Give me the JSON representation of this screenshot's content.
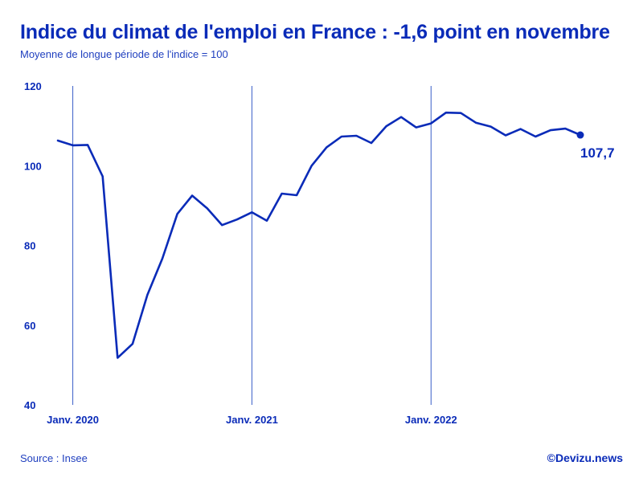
{
  "title": "Indice du climat de l'emploi en France : -1,6 point en novembre",
  "subtitle": "Moyenne de longue période de l'indice = 100",
  "footer": {
    "source": "Source : Insee",
    "credit": "©Devizu.news"
  },
  "colors": {
    "line": "#0a2bb8",
    "text": "#0a2bb8",
    "reference_lines": "#3a5fc8"
  },
  "chart_data": {
    "type": "line",
    "ylim": [
      40,
      120
    ],
    "yticks": [
      "40",
      "60",
      "80",
      "100",
      "120"
    ],
    "ytick_values": [
      40,
      60,
      80,
      100,
      120
    ],
    "x_start": "2019-12",
    "x_end": "2022-11",
    "xticks": [
      {
        "label": "Janv. 2020",
        "x": "2020-01"
      },
      {
        "label": "Janv. 2021",
        "x": "2021-01"
      },
      {
        "label": "Janv. 2022",
        "x": "2022-01"
      }
    ],
    "vertical_reference_lines_at": [
      "2020-01",
      "2021-01",
      "2022-01"
    ],
    "series": [
      {
        "name": "",
        "x": [
          "2019-12",
          "2020-01",
          "2020-02",
          "2020-03",
          "2020-04",
          "2020-05",
          "2020-06",
          "2020-07",
          "2020-08",
          "2020-09",
          "2020-10",
          "2020-11",
          "2020-12",
          "2021-01",
          "2021-02",
          "2021-03",
          "2021-04",
          "2021-05",
          "2021-06",
          "2021-07",
          "2021-08",
          "2021-09",
          "2021-10",
          "2021-11",
          "2021-12",
          "2022-01",
          "2022-02",
          "2022-03",
          "2022-04",
          "2022-05",
          "2022-06",
          "2022-07",
          "2022-08",
          "2022-09",
          "2022-10",
          "2022-11"
        ],
        "values": [
          106.3,
          105.1,
          105.2,
          97.3,
          51.8,
          55.3,
          67.6,
          76.7,
          87.9,
          92.5,
          89.3,
          85.1,
          86.5,
          88.3,
          86.2,
          93.0,
          92.6,
          100.0,
          104.6,
          107.3,
          107.5,
          105.7,
          109.9,
          112.2,
          109.6,
          110.6,
          113.3,
          113.2,
          110.8,
          109.8,
          107.6,
          109.2,
          107.3,
          108.9,
          109.3,
          107.7
        ]
      }
    ],
    "last_point_label": "107,7",
    "grid": false
  }
}
